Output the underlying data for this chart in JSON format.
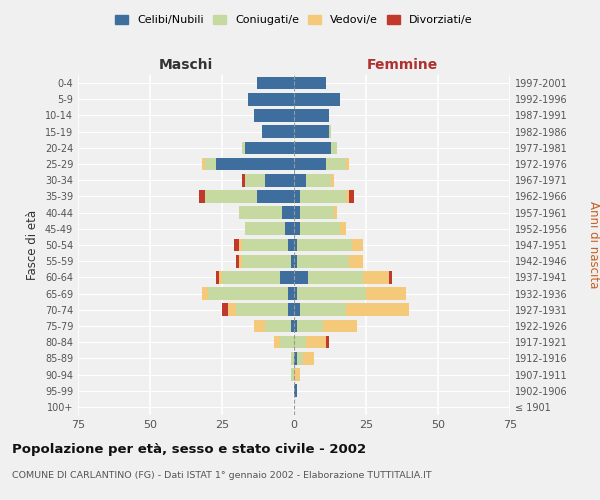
{
  "age_groups": [
    "100+",
    "95-99",
    "90-94",
    "85-89",
    "80-84",
    "75-79",
    "70-74",
    "65-69",
    "60-64",
    "55-59",
    "50-54",
    "45-49",
    "40-44",
    "35-39",
    "30-34",
    "25-29",
    "20-24",
    "15-19",
    "10-14",
    "5-9",
    "0-4"
  ],
  "birth_years": [
    "≤ 1901",
    "1902-1906",
    "1907-1911",
    "1912-1916",
    "1917-1921",
    "1922-1926",
    "1927-1931",
    "1932-1936",
    "1937-1941",
    "1942-1946",
    "1947-1951",
    "1952-1956",
    "1957-1961",
    "1962-1966",
    "1967-1971",
    "1972-1976",
    "1977-1981",
    "1982-1986",
    "1987-1991",
    "1992-1996",
    "1997-2001"
  ],
  "male": {
    "celibi": [
      0,
      0,
      0,
      0,
      0,
      1,
      2,
      2,
      5,
      1,
      2,
      3,
      4,
      13,
      10,
      27,
      17,
      11,
      14,
      16,
      13
    ],
    "coniugati": [
      0,
      0,
      1,
      1,
      5,
      9,
      18,
      28,
      20,
      17,
      16,
      14,
      15,
      18,
      7,
      4,
      1,
      0,
      0,
      0,
      0
    ],
    "vedovi": [
      0,
      0,
      0,
      0,
      2,
      4,
      3,
      2,
      1,
      1,
      1,
      0,
      0,
      0,
      0,
      1,
      0,
      0,
      0,
      0,
      0
    ],
    "divorziati": [
      0,
      0,
      0,
      0,
      0,
      0,
      2,
      0,
      1,
      1,
      2,
      0,
      0,
      2,
      1,
      0,
      0,
      0,
      0,
      0,
      0
    ]
  },
  "female": {
    "nubili": [
      0,
      1,
      0,
      1,
      0,
      1,
      2,
      1,
      5,
      1,
      1,
      2,
      2,
      2,
      4,
      11,
      13,
      12,
      12,
      16,
      11
    ],
    "coniugate": [
      0,
      0,
      0,
      2,
      4,
      9,
      16,
      24,
      19,
      18,
      19,
      14,
      12,
      16,
      9,
      7,
      2,
      1,
      0,
      0,
      0
    ],
    "vedove": [
      0,
      0,
      2,
      4,
      7,
      12,
      22,
      14,
      9,
      5,
      4,
      2,
      1,
      1,
      1,
      1,
      0,
      0,
      0,
      0,
      0
    ],
    "divorziate": [
      0,
      0,
      0,
      0,
      1,
      0,
      0,
      0,
      1,
      0,
      0,
      0,
      0,
      2,
      0,
      0,
      0,
      0,
      0,
      0,
      0
    ]
  },
  "color_celibi": "#3d6e9e",
  "color_coniugati": "#c5d9a0",
  "color_vedovi": "#f5c97a",
  "color_divorziati": "#c0392b",
  "xlim": 75,
  "title": "Popolazione per età, sesso e stato civile - 2002",
  "subtitle": "COMUNE DI CARLANTINO (FG) - Dati ISTAT 1° gennaio 2002 - Elaborazione TUTTITALIA.IT",
  "ylabel_left": "Fasce di età",
  "ylabel_right": "Anni di nascita",
  "xlabel_maschi": "Maschi",
  "xlabel_femmine": "Femmine",
  "legend_labels": [
    "Celibi/Nubili",
    "Coniugati/e",
    "Vedovi/e",
    "Divorziati/e"
  ],
  "background_color": "#f0f0f0"
}
